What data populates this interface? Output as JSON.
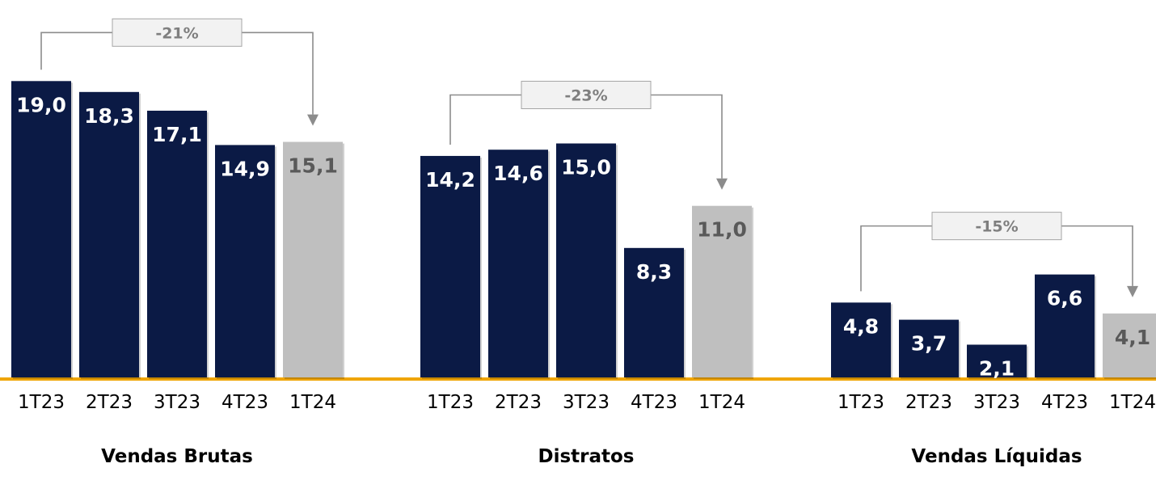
{
  "chart_data": [
    {
      "type": "bar",
      "title": "Vendas Brutas",
      "categories": [
        "1T23",
        "2T23",
        "3T23",
        "4T23",
        "1T24"
      ],
      "values": [
        19.0,
        18.3,
        17.1,
        14.9,
        15.1
      ],
      "value_labels": [
        "19,0",
        "18,3",
        "17,1",
        "14,9",
        "15,1"
      ],
      "highlight_color": "#bfbfbf",
      "change_annotation": {
        "text": "-21%",
        "from": "1T23",
        "to": "1T24"
      }
    },
    {
      "type": "bar",
      "title": "Distratos",
      "categories": [
        "1T23",
        "2T23",
        "3T23",
        "4T23",
        "1T24"
      ],
      "values": [
        14.2,
        14.6,
        15.0,
        8.3,
        11.0
      ],
      "value_labels": [
        "14,2",
        "14,6",
        "15,0",
        "8,3",
        "11,0"
      ],
      "highlight_color": "#bfbfbf",
      "change_annotation": {
        "text": "-23%",
        "from": "1T23",
        "to": "1T24"
      }
    },
    {
      "type": "bar",
      "title": "Vendas Líquidas",
      "categories": [
        "1T23",
        "2T23",
        "3T23",
        "4T23",
        "1T24"
      ],
      "values": [
        4.8,
        3.7,
        2.1,
        6.6,
        4.1
      ],
      "value_labels": [
        "4,8",
        "3,7",
        "2,1",
        "6,6",
        "4,1"
      ],
      "highlight_color": "#bfbfbf",
      "change_annotation": {
        "text": "-15%",
        "from": "1T23",
        "to": "1T24"
      }
    }
  ],
  "colors": {
    "bar_primary": "#0b1a45",
    "bar_highlight": "#bfbfbf",
    "baseline": "#f0a500",
    "bracket": "#8c8c8c",
    "change_box_fill": "#f2f2f2",
    "change_box_stroke": "#a6a6a6",
    "label_on_dark": "#ffffff",
    "label_on_light": "#595959"
  }
}
